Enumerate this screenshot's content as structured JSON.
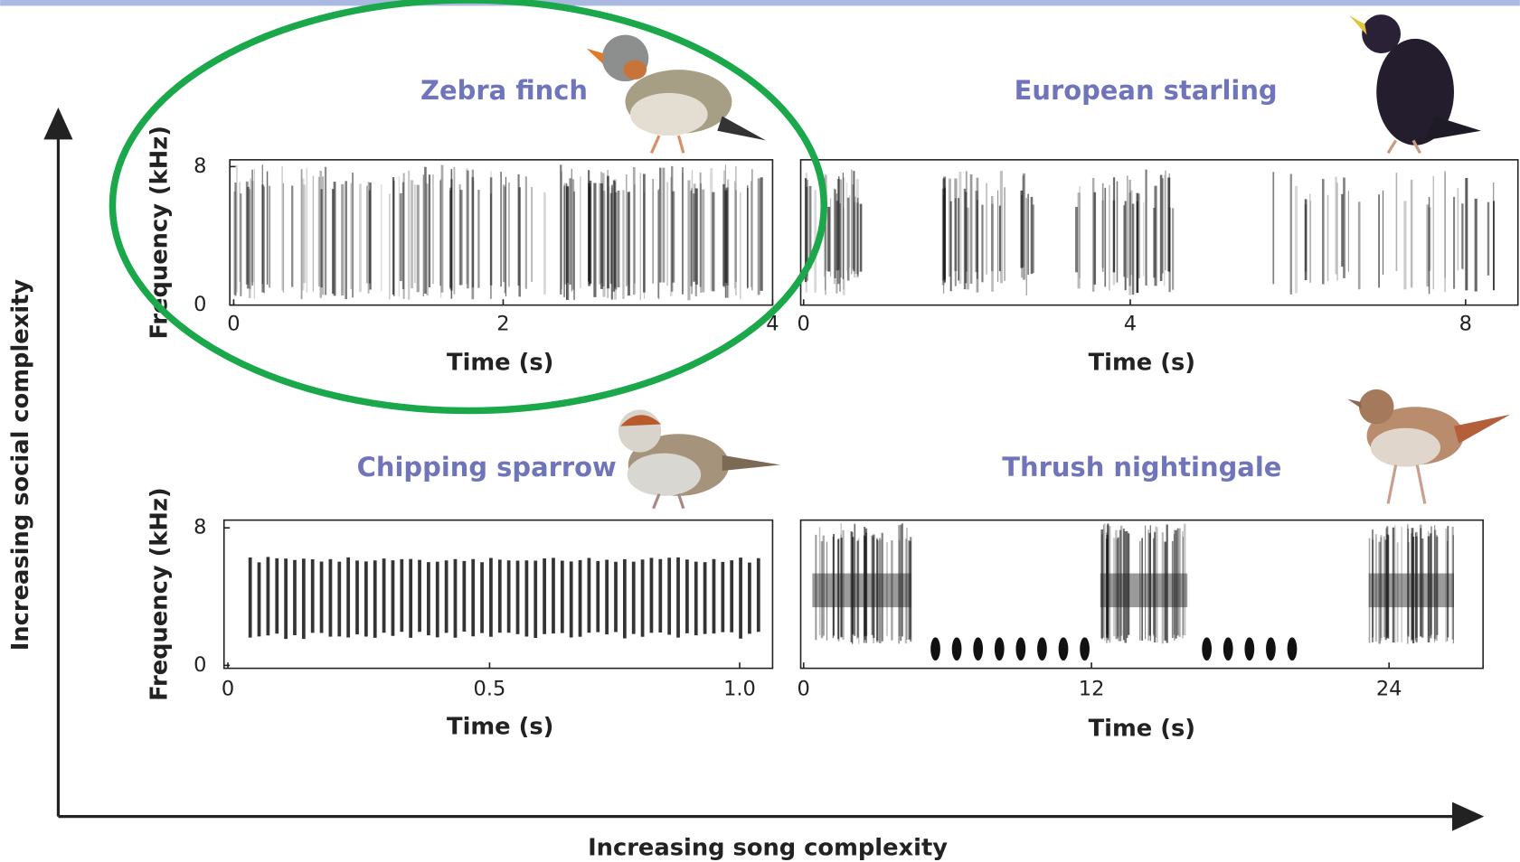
{
  "figure": {
    "y_axis_label": "Increasing social complexity",
    "x_axis_label": "Increasing song complexity",
    "panels": [
      {
        "title": "Zebra finch",
        "y_label": "Frequency (kHz)",
        "y_ticks": [
          "8",
          "0"
        ],
        "x_ticks": [
          "0",
          "2",
          "4"
        ],
        "x_label": "Time (s)"
      },
      {
        "title": "European starling",
        "x_ticks": [
          "0",
          "4",
          "8"
        ],
        "x_label": "Time (s)"
      },
      {
        "title": "Chipping sparrow",
        "y_label": "Frequency (kHz)",
        "y_ticks": [
          "8",
          "0"
        ],
        "x_ticks": [
          "0",
          "0.5",
          "1.0"
        ],
        "x_label": "Time (s)"
      },
      {
        "title": "Thrush nightingale",
        "x_ticks": [
          "0",
          "12",
          "24"
        ],
        "x_label": "Time (s)"
      }
    ]
  }
}
